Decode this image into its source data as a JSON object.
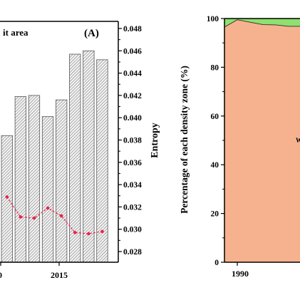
{
  "chart_data": [
    {
      "panel_label": "(A)",
      "type": "bar",
      "legend_text": "it area",
      "x_tick_labels": [
        "0",
        "2015"
      ],
      "y2_label": "Entropy",
      "y2_ticks": [
        "0.028",
        "0.030",
        "0.032",
        "0.034",
        "0.036",
        "0.038",
        "0.040",
        "0.042",
        "0.044",
        "0.046",
        "0.048"
      ],
      "y2_lim": [
        0.027,
        0.049
      ],
      "bars": {
        "style": "hatched",
        "values": [
          0.0384,
          0.0419,
          0.042,
          0.0401,
          0.0416,
          0.0457,
          0.046,
          0.0452
        ]
      },
      "line": {
        "color": "#e8254b",
        "values": [
          0.0329,
          0.0311,
          0.031,
          0.0319,
          0.0312,
          0.0297,
          0.0296,
          0.0298
        ]
      }
    },
    {
      "type": "area",
      "y_label": "Percentage of each density zone (%)",
      "y_ticks": [
        "0",
        "20",
        "40",
        "60",
        "80",
        "100"
      ],
      "ylim": [
        0,
        100
      ],
      "x_tick_labels": [
        "1990"
      ],
      "x": [
        1988,
        1990,
        1992,
        1994,
        1996,
        1998,
        2000
      ],
      "series": [
        {
          "color": "#f6b28e",
          "values": [
            96.5,
            99.5,
            98.5,
            97.5,
            97.4,
            96.8,
            96.8
          ]
        },
        {
          "color": "#8ee06f",
          "values": [
            3.5,
            0.5,
            1.5,
            2.5,
            2.6,
            3.2,
            3.2
          ]
        }
      ],
      "partial_label": "W"
    }
  ]
}
